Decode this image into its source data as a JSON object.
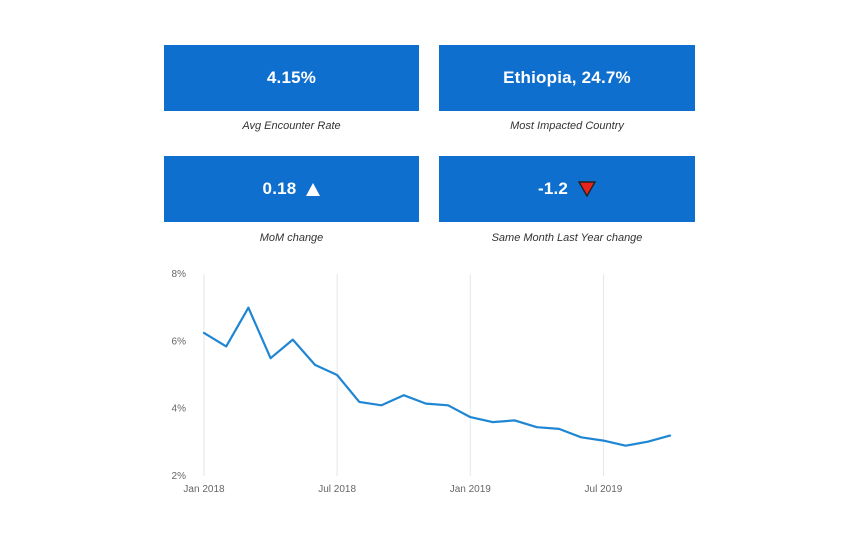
{
  "kpis": [
    {
      "value": "4.15%",
      "label": "Avg Encounter Rate"
    },
    {
      "value": "Ethiopia, 24.7%",
      "label": "Most Impacted Country"
    },
    {
      "value": "0.18",
      "label": "MoM change",
      "trend": "up",
      "trend_color": "#ffffff"
    },
    {
      "value": "-1.2",
      "label": "Same Month Last Year change",
      "trend": "down",
      "trend_color": "#e8241c"
    }
  ],
  "colors": {
    "card": "#0f6fce",
    "line": "#1f86d4",
    "grid": "#e6e6e6"
  },
  "chart_data": {
    "type": "line",
    "title": "",
    "xlabel": "",
    "ylabel": "",
    "ylim": [
      2,
      8
    ],
    "y_ticks": [
      "2%",
      "4%",
      "6%",
      "8%"
    ],
    "y_tick_values": [
      2,
      4,
      6,
      8
    ],
    "x_ticks": [
      "Jan 2018",
      "Jul 2018",
      "Jan 2019",
      "Jul 2019"
    ],
    "x_tick_index": [
      0,
      6,
      12,
      18
    ],
    "x": [
      0,
      1,
      2,
      3,
      4,
      5,
      6,
      7,
      8,
      9,
      10,
      11,
      12,
      13,
      14,
      15,
      16,
      17,
      18,
      19,
      20,
      21
    ],
    "series": [
      {
        "name": "Encounter Rate",
        "values": [
          6.25,
          5.85,
          7.0,
          5.5,
          6.05,
          5.3,
          5.0,
          4.2,
          4.1,
          4.4,
          4.15,
          4.1,
          3.75,
          3.6,
          3.65,
          3.45,
          3.4,
          3.15,
          3.05,
          2.9,
          3.02,
          3.2
        ]
      }
    ]
  }
}
